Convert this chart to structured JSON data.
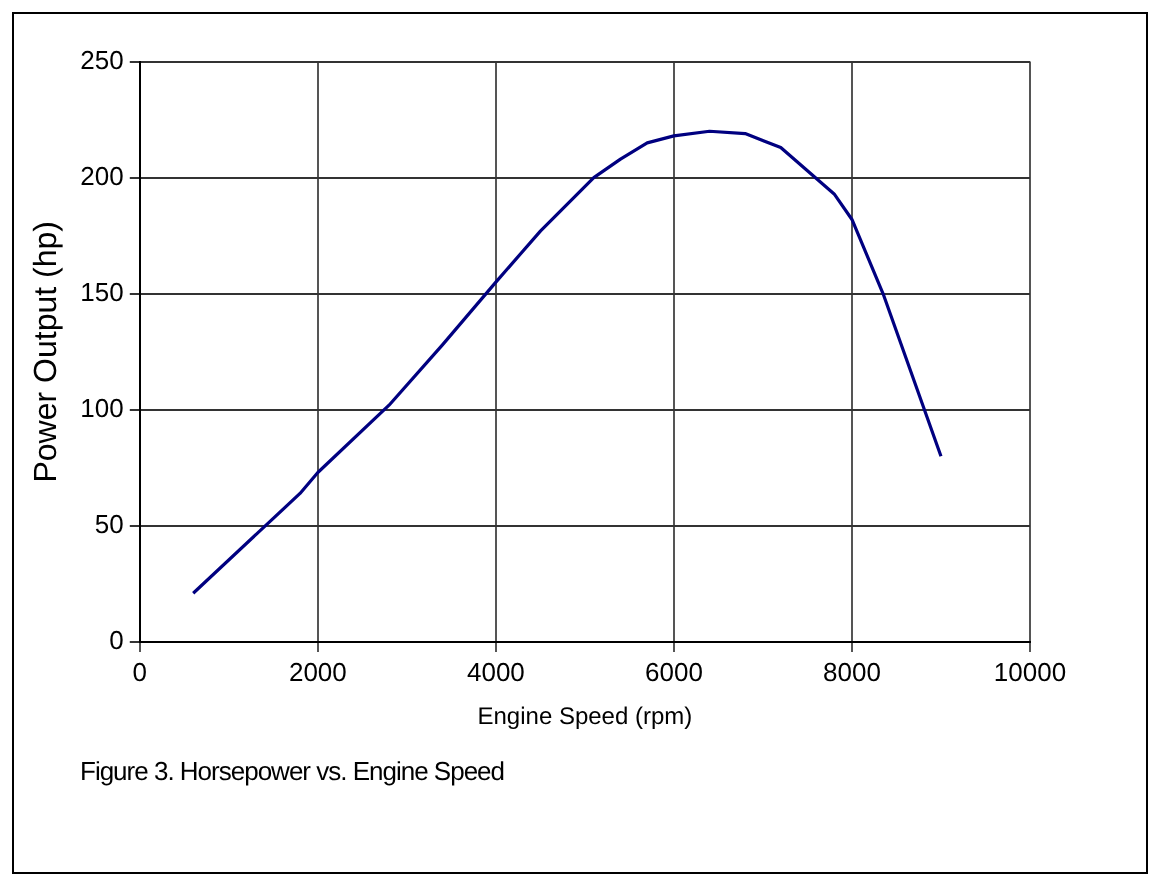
{
  "chart_data": {
    "type": "line",
    "xlabel": "Engine Speed (rpm)",
    "ylabel": "Power Output (hp)",
    "x": [
      600,
      1800,
      2000,
      2800,
      3400,
      4000,
      4500,
      5100,
      5400,
      5700,
      6000,
      6400,
      6800,
      7200,
      7800,
      8000,
      8350,
      9000
    ],
    "series": [
      {
        "color": "#000080",
        "values": [
          21,
          64,
          73,
          102,
          128,
          155,
          177,
          200,
          208,
          215,
          218,
          220,
          219,
          213,
          193,
          182,
          150,
          80
        ]
      }
    ],
    "xlim": [
      0,
      10000
    ],
    "xticks": [
      0,
      2000,
      4000,
      6000,
      8000,
      10000
    ],
    "ylim": [
      0,
      250
    ],
    "yticks": [
      0,
      50,
      100,
      150,
      200,
      250
    ],
    "grid": true,
    "legend": false,
    "marker": "none",
    "line_style": "solid",
    "annotations": [
      "Figure 3.  Horsepower vs. Engine Speed"
    ]
  }
}
